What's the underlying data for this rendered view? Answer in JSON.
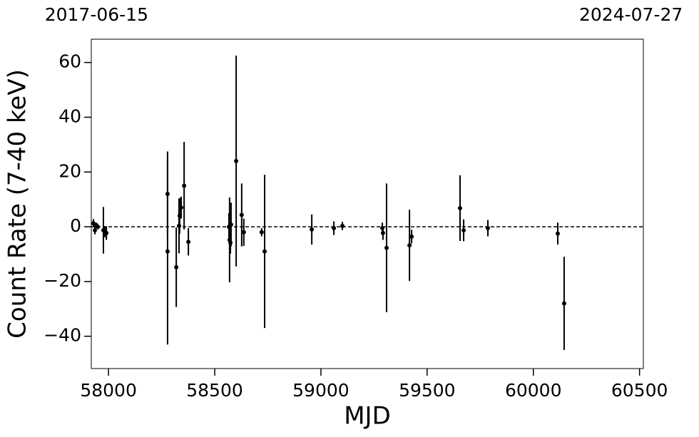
{
  "chart_data": {
    "type": "errorbar-scatter",
    "xlabel": "MJD",
    "ylabel": "Count Rate (7-40 keV)",
    "xlim": [
      57919,
      60518
    ],
    "ylim": [
      -51.8,
      68.5
    ],
    "xticks": [
      58000,
      58500,
      59000,
      59500,
      60000,
      60500
    ],
    "yticks": [
      {
        "value": -40,
        "label": "−40"
      },
      {
        "value": -20,
        "label": "−20"
      },
      0,
      20,
      40,
      60
    ],
    "x2ticks": [
      {
        "value": 57919,
        "label": "2017-06-15"
      },
      {
        "value": 60518,
        "label": "2024-07-27"
      }
    ],
    "hline": 0,
    "hline_style": "dashed",
    "series": [
      {
        "color": "#000000",
        "x": [
          57929,
          57936,
          57943,
          57949,
          57976,
          57983,
          57990,
          58278,
          58278,
          58319,
          58332,
          58335,
          58342,
          58356,
          58376,
          58567,
          58570,
          58574,
          58577,
          58601,
          58627,
          58637,
          58721,
          58735,
          58957,
          59061,
          59101,
          59289,
          59292,
          59309,
          59417,
          59427,
          59655,
          59672,
          59786,
          60115,
          60145
        ],
        "values": [
          1.3,
          -1.3,
          0.5,
          0,
          -1.3,
          -1.8,
          -2.3,
          12,
          -9,
          -14.8,
          0.3,
          4,
          7,
          15,
          -5.5,
          0,
          -4.8,
          -5.8,
          0.8,
          24,
          4.3,
          -2,
          -2,
          -9,
          -1,
          -0.5,
          0.3,
          -0.5,
          -2.3,
          -7.7,
          -6.8,
          -3.6,
          6.8,
          -1.3,
          -0.5,
          -2.5,
          -28
        ],
        "errors": [
          1.5,
          1.5,
          1,
          1,
          8.5,
          2,
          2.5,
          15.5,
          34,
          14.5,
          10,
          6.5,
          4,
          16,
          5,
          5,
          15.5,
          4,
          8,
          38.5,
          11.5,
          5,
          1.5,
          28,
          5.5,
          2.5,
          1.5,
          2,
          2.5,
          23.5,
          13,
          2.5,
          12,
          4,
          3,
          4,
          17
        ]
      }
    ]
  }
}
